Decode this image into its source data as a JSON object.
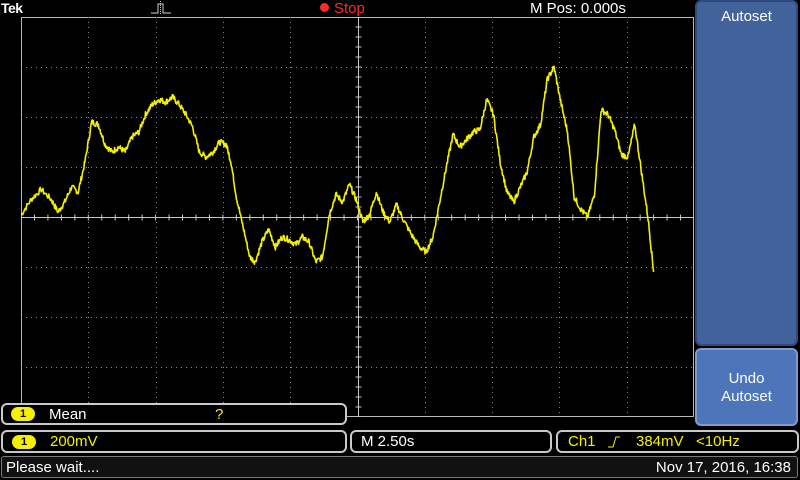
{
  "header": {
    "brand": "Tek",
    "run_state": "Stop",
    "horizontal_position": "M Pos: 0.000s"
  },
  "menu": {
    "autoset_label": "Autoset",
    "undo_autoset_line1": "Undo",
    "undo_autoset_line2": "Autoset"
  },
  "measurement": {
    "channel": "1",
    "label": "Mean",
    "value": "?"
  },
  "channel_settings": {
    "channel": "1",
    "volts_per_div": "200mV"
  },
  "timebase": {
    "time_per_div": "M 2.50s"
  },
  "trigger": {
    "source": "Ch1",
    "level": "384mV",
    "frequency": "<10Hz"
  },
  "footer": {
    "message": "Please wait....",
    "datetime": "Nov 17, 2016, 16:38"
  },
  "colors": {
    "trace": "#f4f000",
    "stop": "#ff2a2a",
    "menu": "#42629c"
  },
  "chart_data": {
    "type": "line",
    "title": "",
    "xlabel": "",
    "ylabel": "",
    "grid": true,
    "x_divisions": 10,
    "y_divisions": 8,
    "x_range": [
      0,
      10
    ],
    "y_range": [
      -4,
      4
    ],
    "series": [
      {
        "points": [
          [
            0.0,
            0.04
          ],
          [
            0.15,
            0.35
          ],
          [
            0.3,
            0.55
          ],
          [
            0.45,
            0.35
          ],
          [
            0.55,
            0.1
          ],
          [
            0.65,
            0.3
          ],
          [
            0.75,
            0.6
          ],
          [
            0.85,
            0.5
          ],
          [
            0.95,
            1.1
          ],
          [
            1.05,
            1.9
          ],
          [
            1.15,
            1.85
          ],
          [
            1.25,
            1.45
          ],
          [
            1.35,
            1.3
          ],
          [
            1.45,
            1.4
          ],
          [
            1.55,
            1.3
          ],
          [
            1.65,
            1.6
          ],
          [
            1.75,
            1.7
          ],
          [
            1.85,
            2.05
          ],
          [
            1.95,
            2.25
          ],
          [
            2.05,
            2.35
          ],
          [
            2.15,
            2.3
          ],
          [
            2.25,
            2.4
          ],
          [
            2.35,
            2.25
          ],
          [
            2.45,
            2.05
          ],
          [
            2.55,
            1.8
          ],
          [
            2.65,
            1.3
          ],
          [
            2.75,
            1.2
          ],
          [
            2.85,
            1.3
          ],
          [
            2.95,
            1.5
          ],
          [
            3.05,
            1.45
          ],
          [
            3.12,
            1.1
          ],
          [
            3.2,
            0.4
          ],
          [
            3.3,
            -0.2
          ],
          [
            3.4,
            -0.8
          ],
          [
            3.48,
            -0.9
          ],
          [
            3.58,
            -0.5
          ],
          [
            3.68,
            -0.25
          ],
          [
            3.78,
            -0.6
          ],
          [
            3.88,
            -0.4
          ],
          [
            3.98,
            -0.45
          ],
          [
            4.08,
            -0.55
          ],
          [
            4.18,
            -0.4
          ],
          [
            4.28,
            -0.5
          ],
          [
            4.38,
            -0.9
          ],
          [
            4.48,
            -0.8
          ],
          [
            4.58,
            0.05
          ],
          [
            4.68,
            0.45
          ],
          [
            4.78,
            0.3
          ],
          [
            4.88,
            0.65
          ],
          [
            4.98,
            0.35
          ],
          [
            5.08,
            -0.1
          ],
          [
            5.18,
            0.05
          ],
          [
            5.28,
            0.5
          ],
          [
            5.38,
            0.1
          ],
          [
            5.48,
            -0.1
          ],
          [
            5.58,
            0.25
          ],
          [
            5.68,
            -0.05
          ],
          [
            5.8,
            -0.35
          ],
          [
            5.92,
            -0.6
          ],
          [
            6.02,
            -0.7
          ],
          [
            6.12,
            -0.4
          ],
          [
            6.22,
            0.3
          ],
          [
            6.32,
            1.0
          ],
          [
            6.42,
            1.65
          ],
          [
            6.52,
            1.4
          ],
          [
            6.62,
            1.55
          ],
          [
            6.72,
            1.7
          ],
          [
            6.82,
            1.75
          ],
          [
            6.92,
            2.35
          ],
          [
            7.02,
            2.05
          ],
          [
            7.12,
            1.1
          ],
          [
            7.22,
            0.5
          ],
          [
            7.32,
            0.3
          ],
          [
            7.42,
            0.6
          ],
          [
            7.52,
            0.9
          ],
          [
            7.62,
            1.6
          ],
          [
            7.72,
            1.85
          ],
          [
            7.82,
            2.75
          ],
          [
            7.92,
            3.0
          ],
          [
            8.02,
            2.3
          ],
          [
            8.12,
            1.7
          ],
          [
            8.22,
            0.4
          ],
          [
            8.32,
            0.15
          ],
          [
            8.42,
            0.0
          ],
          [
            8.52,
            0.45
          ],
          [
            8.62,
            2.15
          ],
          [
            8.72,
            2.05
          ],
          [
            8.82,
            1.75
          ],
          [
            8.92,
            1.25
          ],
          [
            9.02,
            1.2
          ],
          [
            9.12,
            1.85
          ],
          [
            9.22,
            0.9
          ],
          [
            9.32,
            -0.05
          ],
          [
            9.4,
            -1.1
          ]
        ]
      }
    ]
  }
}
